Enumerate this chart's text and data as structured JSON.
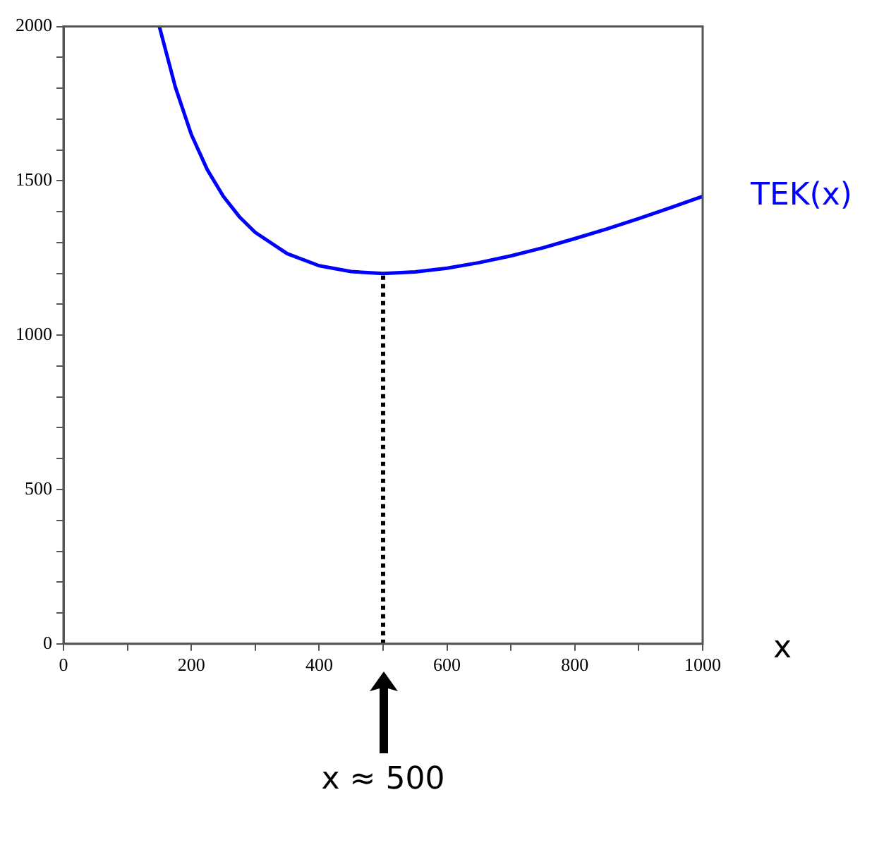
{
  "chart_data": {
    "type": "line",
    "xlabel": "x",
    "x": [
      150,
      175,
      200,
      225,
      250,
      275,
      300,
      350,
      400,
      450,
      500,
      550,
      600,
      650,
      700,
      750,
      800,
      850,
      900,
      950,
      1000
    ],
    "series": [
      {
        "name": "TEK(x)",
        "color": "#0000ff",
        "values": [
          2000,
          1804,
          1650,
          1536,
          1450,
          1384,
          1333,
          1264,
          1225,
          1206,
          1200,
          1205,
          1217,
          1235,
          1257,
          1283,
          1313,
          1344,
          1378,
          1413,
          1450
        ]
      },
      {
        "color": "#000000",
        "line_style": "dotted",
        "x": [
          500,
          500
        ],
        "values": [
          0,
          1200
        ]
      }
    ],
    "xlim": [
      0,
      1000
    ],
    "xticks": [
      0,
      {
        "value": 100,
        "label": null
      },
      200,
      {
        "value": 300,
        "label": null
      },
      400,
      {
        "value": 500,
        "label": null
      },
      600,
      {
        "value": 700,
        "label": null
      },
      800,
      {
        "value": 900,
        "label": null
      },
      1000
    ],
    "ylim": [
      0,
      2000
    ],
    "yticks": [
      0,
      {
        "value": 100,
        "label": null
      },
      {
        "value": 200,
        "label": null
      },
      {
        "value": 300,
        "label": null
      },
      {
        "value": 400,
        "label": null
      },
      500,
      {
        "value": 600,
        "label": null
      },
      {
        "value": 700,
        "label": null
      },
      {
        "value": 800,
        "label": null
      },
      {
        "value": 900,
        "label": null
      },
      1000,
      {
        "value": 1100,
        "label": null
      },
      {
        "value": 1200,
        "label": null
      },
      {
        "value": 1300,
        "label": null
      },
      {
        "value": 1400,
        "label": null
      },
      1500,
      {
        "value": 1600,
        "label": null
      },
      {
        "value": 1700,
        "label": null
      },
      {
        "value": 1800,
        "label": null
      },
      {
        "value": 1900,
        "label": null
      },
      2000
    ],
    "marker": "none",
    "annotations": [
      "x ≈ 500"
    ]
  }
}
